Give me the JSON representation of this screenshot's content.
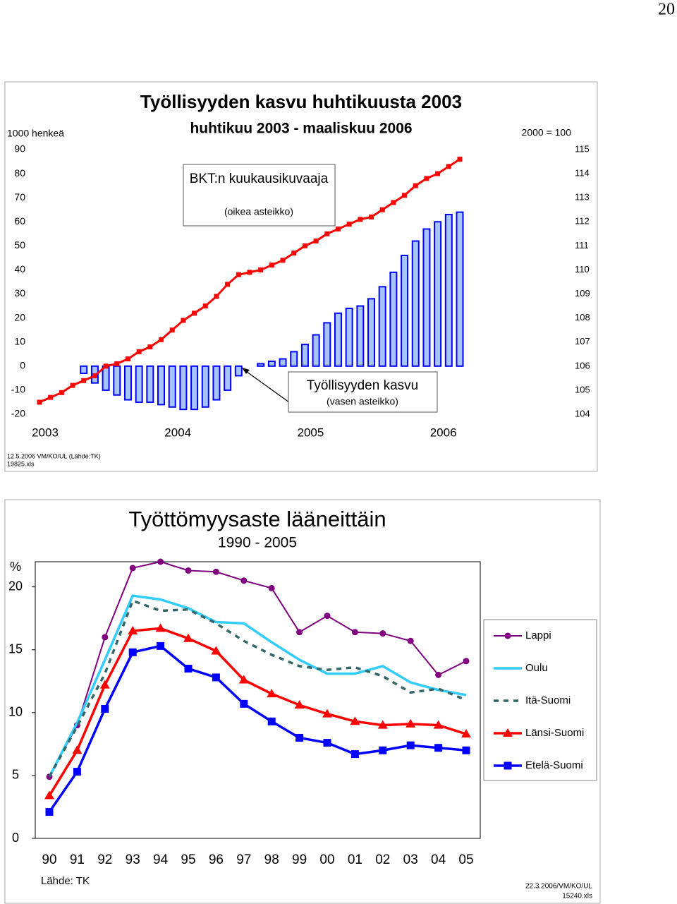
{
  "page_number": 20,
  "chart_data": [
    {
      "type": "combo",
      "title": "Työllisyyden kasvu huhtikuusta 2003",
      "subtitle": "huhtikuu 2003 - maaliskuu 2006",
      "y_label": "1000 henkeä",
      "y2_label": "2000 = 100",
      "footer": [
        "12.5.2006  VM/KO/UL  (Lähde:TK)",
        "19825.xls"
      ],
      "categories": [
        "2003",
        null,
        null,
        null,
        null,
        null,
        null,
        null,
        null,
        null,
        null,
        null,
        "2004",
        null,
        null,
        null,
        null,
        null,
        null,
        null,
        null,
        null,
        null,
        null,
        "2005",
        null,
        null,
        null,
        null,
        null,
        null,
        null,
        null,
        null,
        null,
        null,
        "2006",
        null,
        null
      ],
      "ylim": [
        -20,
        90
      ],
      "yticks": [
        -20,
        -10,
        0,
        10,
        20,
        30,
        40,
        50,
        60,
        70,
        80,
        90
      ],
      "y2lim": [
        104,
        115
      ],
      "y2ticks": [
        104,
        105,
        106,
        107,
        108,
        109,
        110,
        111,
        112,
        113,
        114,
        115
      ],
      "series": [
        {
          "name": "Työllisyyden kasvu",
          "note": "(vasen asteikko)",
          "type": "bar",
          "color": "#0000ff",
          "fill": "#a8c4ff",
          "values": [
            null,
            null,
            null,
            null,
            -3,
            -7,
            -10,
            -12,
            -14,
            -15,
            -15,
            -16,
            -17,
            -18,
            -18,
            -17,
            -14,
            -10,
            -4,
            null,
            1,
            2,
            3,
            6,
            9,
            13,
            18,
            22,
            24,
            25,
            28,
            33,
            39,
            46,
            52,
            57,
            60,
            63,
            64
          ]
        },
        {
          "name": "BKT:n kuukausikuvaaja",
          "note": "(oikea asteikko)",
          "type": "line",
          "axis": "y2",
          "color": "#ff0000",
          "values": [
            104.5,
            104.7,
            104.9,
            105.2,
            105.4,
            105.6,
            106.0,
            106.1,
            106.3,
            106.6,
            106.8,
            107.1,
            107.5,
            107.9,
            108.2,
            108.5,
            108.9,
            109.4,
            109.8,
            109.9,
            110.0,
            110.2,
            110.4,
            110.7,
            111.0,
            111.2,
            111.5,
            111.7,
            111.9,
            112.1,
            112.2,
            112.5,
            112.8,
            113.1,
            113.5,
            113.8,
            114.0,
            114.3,
            114.6
          ]
        }
      ]
    },
    {
      "type": "line",
      "title": "Työttömyysaste lääneittäin",
      "subtitle": "1990 - 2005",
      "y_label": "%",
      "source": "Lähde: TK",
      "footer": [
        "22.3.2006/VM/KO/UL",
        "15240.xls"
      ],
      "categories": [
        "90",
        "91",
        "92",
        "93",
        "94",
        "95",
        "96",
        "97",
        "98",
        "99",
        "00",
        "01",
        "02",
        "03",
        "04",
        "05"
      ],
      "ylim": [
        0,
        22
      ],
      "yticks": [
        0,
        5,
        10,
        15,
        20
      ],
      "legend": "right",
      "series": [
        {
          "name": "Lappi",
          "color": "#800080",
          "marker": "circle",
          "values": [
            4.9,
            9.0,
            16.0,
            21.5,
            22.0,
            21.3,
            21.2,
            20.5,
            19.9,
            16.4,
            17.7,
            16.4,
            16.3,
            15.7,
            13.0,
            14.1
          ]
        },
        {
          "name": "Oulu",
          "color": "#33ccff",
          "marker": "none",
          "values": [
            4.9,
            9.2,
            14.2,
            19.3,
            19.0,
            18.3,
            17.2,
            17.1,
            15.6,
            14.2,
            13.1,
            13.1,
            13.7,
            12.4,
            11.8,
            11.4
          ]
        },
        {
          "name": "Itä-Suomi",
          "color": "#336666",
          "marker": "none",
          "dash": true,
          "values": [
            4.9,
            8.9,
            13.1,
            18.9,
            18.1,
            18.2,
            17.1,
            15.7,
            14.6,
            13.7,
            13.4,
            13.6,
            12.9,
            11.6,
            11.9,
            11.0
          ]
        },
        {
          "name": "Länsi-Suomi",
          "color": "#ff0000",
          "marker": "triangle",
          "values": [
            3.4,
            7.0,
            12.2,
            16.5,
            16.7,
            15.9,
            14.9,
            12.6,
            11.5,
            10.6,
            9.9,
            9.3,
            9.0,
            9.1,
            9.0,
            8.3
          ]
        },
        {
          "name": "Etelä-Suomi",
          "color": "#0000ff",
          "marker": "square",
          "values": [
            2.1,
            5.3,
            10.3,
            14.8,
            15.3,
            13.5,
            12.8,
            10.7,
            9.3,
            8.0,
            7.6,
            6.7,
            7.0,
            7.4,
            7.2,
            7.0
          ]
        }
      ]
    }
  ]
}
